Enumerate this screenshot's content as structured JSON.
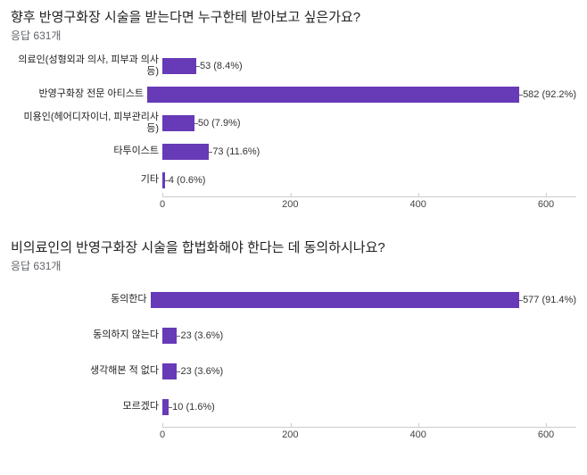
{
  "chart1": {
    "type": "bar",
    "title": "향후 반영구화장 시술을 받는다면 누구한테 받아보고 싶은가요?",
    "subtitle": "응답 631개",
    "xmax": 600,
    "xtick_step": 200,
    "bar_color": "#673ab7",
    "categories": [
      {
        "label": "의료인(성형외과 의사, 피부과 의사 등)",
        "value": 53,
        "pct": "8.4%"
      },
      {
        "label": "반영구화장 전문 아티스트",
        "value": 582,
        "pct": "92.2%"
      },
      {
        "label": "미용인(헤어디자이너, 피부관리사 등)",
        "value": 50,
        "pct": "7.9%"
      },
      {
        "label": "타투이스트",
        "value": 73,
        "pct": "11.6%"
      },
      {
        "label": "기타",
        "value": 4,
        "pct": "0.6%"
      }
    ],
    "ticks": [
      "0",
      "200",
      "400",
      "600"
    ]
  },
  "chart2": {
    "type": "bar",
    "title": "비의료인의 반영구화장 시술을 합법화해야 한다는 데 동의하시나요?",
    "subtitle": "응답 631개",
    "xmax": 600,
    "xtick_step": 200,
    "bar_color": "#673ab7",
    "categories": [
      {
        "label": "동의한다",
        "value": 577,
        "pct": "91.4%"
      },
      {
        "label": "동의하지 않는다",
        "value": 23,
        "pct": "3.6%"
      },
      {
        "label": "생각해본 적 없다",
        "value": 23,
        "pct": "3.6%"
      },
      {
        "label": "모르겠다",
        "value": 10,
        "pct": "1.6%"
      }
    ],
    "ticks": [
      "0",
      "200",
      "400",
      "600"
    ]
  }
}
